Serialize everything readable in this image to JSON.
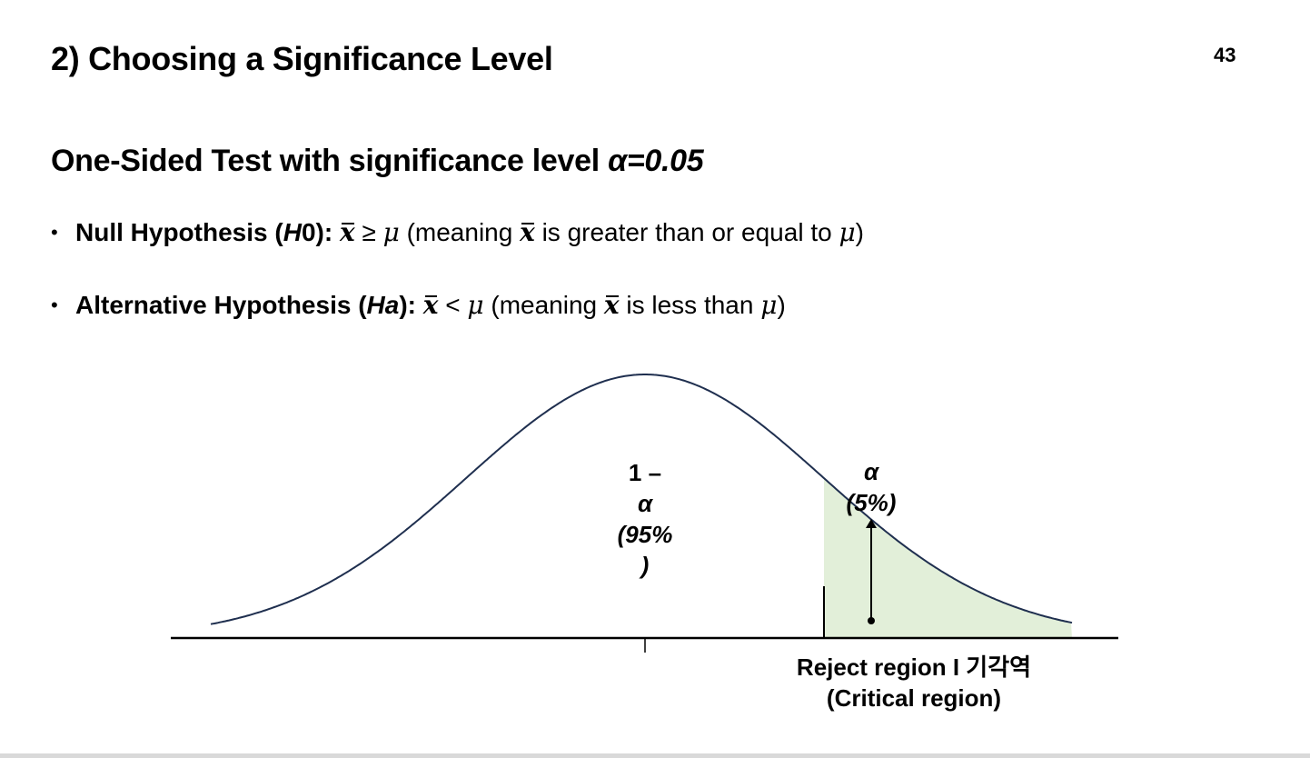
{
  "slide": {
    "title": "2) Choosing a Significance Level",
    "page_number": "43"
  },
  "subtitle": {
    "text": "One-Sided Test with significance level ",
    "alpha": "α=0.05"
  },
  "bullets": [
    {
      "bold_label": "Null Hypothesis (",
      "symbol": "H",
      "symbol_suffix": "0",
      "close": "):",
      "expr_op": "≥",
      "expr_mu": "μ",
      "meaning_prefix": "(meaning",
      "meaning_mid": "is greater than or equal to",
      "meaning_mu": "μ",
      "meaning_close": ")",
      "xbar": "x"
    },
    {
      "bold_label": "Alternative Hypothesis (",
      "symbol": "Ha",
      "symbol_suffix": "",
      "close": "):",
      "expr_op": "<",
      "expr_mu": "μ",
      "meaning_prefix": "(meaning",
      "meaning_mid": "is less than",
      "meaning_mu": "μ",
      "meaning_close": ")",
      "xbar": "x"
    }
  ],
  "diagram": {
    "center_label": [
      "1 –",
      "α",
      "(95%",
      ")"
    ],
    "tail_label": [
      "α",
      "(5%)"
    ],
    "reject_label": [
      "Reject region I 기각역",
      "(Critical region)"
    ],
    "colors": {
      "curve": "#1f2f4f",
      "reject_fill": "#e2efd9",
      "axis": "#000000"
    }
  }
}
